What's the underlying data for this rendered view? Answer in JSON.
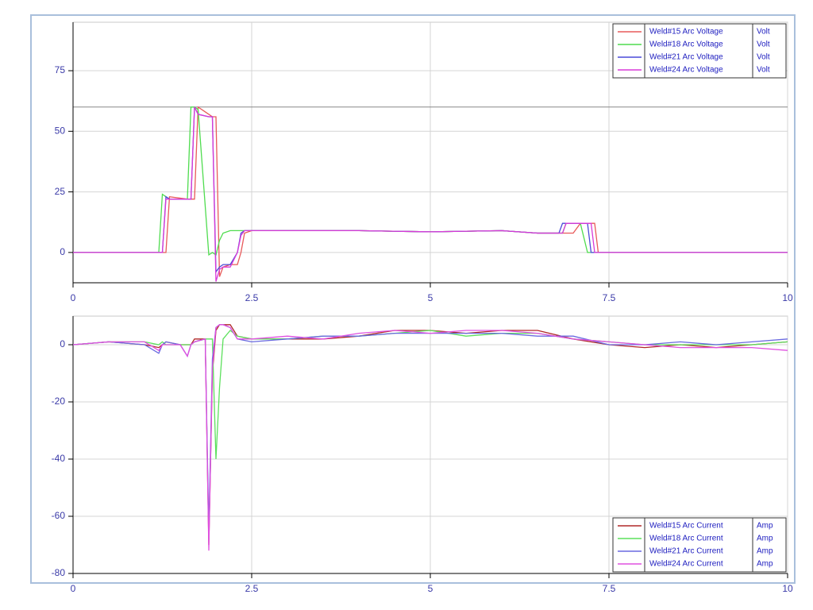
{
  "chart_data": [
    {
      "type": "line",
      "grid": true,
      "legend": "upper right",
      "reference_line": 60,
      "xlim": [
        0,
        10
      ],
      "xticks": [
        0,
        2.5,
        5,
        7.5,
        10
      ],
      "ylim": [
        -12.5,
        95
      ],
      "yticks": [
        0,
        25,
        50,
        75
      ],
      "x": [
        0,
        1.2,
        1.25,
        1.3,
        1.35,
        1.6,
        1.65,
        1.7,
        1.75,
        1.9,
        1.95,
        2.0,
        2.05,
        2.1,
        2.2,
        2.3,
        2.35,
        2.4,
        2.5,
        3,
        4,
        5,
        6,
        6.5,
        6.8,
        6.85,
        6.9,
        7.0,
        7.1,
        7.2,
        7.25,
        7.3,
        7.35,
        8,
        9,
        10
      ],
      "series": [
        {
          "name": "Weld#15 Arc Voltage",
          "unit": "Volt",
          "color": "#e85a5a",
          "values": [
            0,
            0,
            0,
            0,
            23,
            22,
            22,
            22,
            60,
            57,
            56,
            56,
            -10,
            -6,
            -5,
            -5,
            0,
            8,
            9,
            9,
            9,
            8.5,
            9,
            8,
            8,
            8,
            8,
            8,
            12,
            12,
            12,
            12,
            0,
            0,
            0,
            0
          ]
        },
        {
          "name": "Weld#18 Arc Voltage",
          "unit": "Volt",
          "color": "#4fdc4f",
          "values": [
            0,
            0,
            24,
            23,
            22,
            22,
            60,
            60,
            59,
            -1,
            0,
            -1,
            5,
            8,
            9,
            9,
            9,
            9,
            9,
            9,
            9,
            8.5,
            9,
            8,
            8,
            8,
            12,
            12,
            12,
            0,
            0,
            0,
            0,
            0,
            0,
            0
          ]
        },
        {
          "name": "Weld#21 Arc Voltage",
          "unit": "Volt",
          "color": "#4a4ad8",
          "values": [
            0,
            0,
            0,
            23,
            22,
            22,
            22,
            60,
            57,
            56,
            56,
            -8,
            -6,
            -5,
            -5,
            0,
            8,
            9,
            9,
            9,
            9,
            8.5,
            9,
            8,
            8,
            12,
            12,
            12,
            12,
            12,
            0,
            0,
            0,
            0,
            0,
            0
          ]
        },
        {
          "name": "Weld#24 Arc Voltage",
          "unit": "Volt",
          "color": "#d83ad8",
          "values": [
            0,
            0,
            0,
            22,
            22,
            22,
            22,
            60,
            57,
            56,
            56,
            -12,
            -7,
            -6,
            -6,
            0,
            7,
            9,
            9,
            9,
            9,
            8.5,
            9,
            8,
            8,
            8,
            12,
            12,
            12,
            12,
            12,
            0,
            0,
            0,
            0,
            0
          ]
        }
      ]
    },
    {
      "type": "line",
      "grid": true,
      "legend": "lower right",
      "xlim": [
        0,
        10
      ],
      "xticks": [
        0,
        2.5,
        5,
        7.5,
        10
      ],
      "ylim": [
        -80,
        10
      ],
      "yticks": [
        -80,
        -60,
        -40,
        -20,
        0
      ],
      "x": [
        0,
        0.5,
        1,
        1.2,
        1.25,
        1.3,
        1.5,
        1.6,
        1.65,
        1.7,
        1.85,
        1.9,
        1.95,
        2.0,
        2.05,
        2.1,
        2.2,
        2.3,
        2.5,
        3,
        3.5,
        4,
        4.5,
        5,
        5.5,
        6,
        6.5,
        7,
        7.5,
        8,
        8.5,
        9,
        9.5,
        10
      ],
      "series": [
        {
          "name": "Weld#15 Arc Current",
          "unit": "Amp",
          "color": "#b02828",
          "values": [
            0,
            1,
            0,
            -1,
            0,
            1,
            0,
            0,
            0,
            2,
            2,
            -70,
            -10,
            5,
            7,
            7,
            7,
            3,
            2,
            2,
            2,
            3,
            5,
            5,
            4,
            5,
            5,
            2,
            0,
            -1,
            0,
            -1,
            0,
            1
          ]
        },
        {
          "name": "Weld#18 Arc Current",
          "unit": "Amp",
          "color": "#5ce05c",
          "values": [
            0,
            1,
            1,
            0,
            1,
            0,
            0,
            0,
            0,
            1,
            2,
            2,
            2,
            -40,
            -15,
            2,
            5,
            3,
            2,
            2,
            3,
            3,
            4,
            5,
            3,
            4,
            4,
            2,
            1,
            0,
            0,
            0,
            0,
            1
          ]
        },
        {
          "name": "Weld#21 Arc Current",
          "unit": "Amp",
          "color": "#6a6ae0",
          "values": [
            0,
            1,
            0,
            -3,
            0,
            1,
            0,
            -4,
            0,
            1,
            2,
            -65,
            -5,
            6,
            7,
            7,
            6,
            2,
            1,
            2,
            3,
            3,
            4,
            4,
            4,
            4,
            3,
            3,
            0,
            0,
            1,
            0,
            1,
            2
          ]
        },
        {
          "name": "Weld#24 Arc Current",
          "unit": "Amp",
          "color": "#e050e0",
          "values": [
            0,
            1,
            1,
            -2,
            0,
            0,
            0,
            -4,
            0,
            1,
            2,
            -72,
            -8,
            6,
            7,
            7,
            6,
            2,
            2,
            3,
            2,
            4,
            5,
            4,
            5,
            5,
            4,
            2,
            1,
            0,
            -1,
            -1,
            -1,
            -2
          ]
        }
      ]
    }
  ]
}
